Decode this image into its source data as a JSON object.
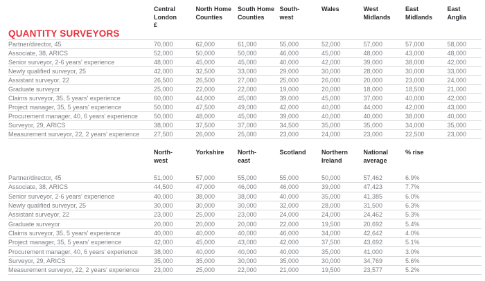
{
  "title": "QUANTITY SURVEYORS",
  "colors": {
    "title_red": "#e8313d",
    "header_text": "#2b2b2f",
    "row_text": "#7d7e82",
    "divider": "#d6d7d8"
  },
  "chart_data": [
    {
      "type": "table",
      "title": "QUANTITY SURVEYORS",
      "columns": [
        "Central\nLondon\n£",
        "North Home\nCounties",
        "South Home\nCounties",
        "South-\nwest",
        "Wales",
        "West\nMidlands",
        "East\nMidlands",
        "East\nAnglia"
      ],
      "rows": [
        {
          "label": "Partner/director, 45",
          "values": [
            "70,000",
            "62,000",
            "61,000",
            "55,000",
            "52,000",
            "57,000",
            "57,000",
            "58,000"
          ]
        },
        {
          "label": "Associate, 38, ARICS",
          "values": [
            "52,000",
            "50,000",
            "50,000",
            "46,000",
            "45,000",
            "48,000",
            "43,000",
            "48,000"
          ]
        },
        {
          "label": "Senior surveyor, 2-6 years' experience",
          "values": [
            "48,000",
            "45,000",
            "45,000",
            "40,000",
            "42,000",
            "39,000",
            "38,000",
            "42,000"
          ]
        },
        {
          "label": "Newly qualified surveyor, 25",
          "values": [
            "42,000",
            "32,500",
            "33,000",
            "29,000",
            "30,000",
            "28,000",
            "30,000",
            "33,000"
          ]
        },
        {
          "label": "Assistant surveyor, 22",
          "values": [
            "26,500",
            "26,500",
            "27,000",
            "25,000",
            "26,000",
            "20,000",
            "23,000",
            "24,000"
          ]
        },
        {
          "label": "Graduate surveyor",
          "values": [
            "25,000",
            "22,000",
            "22,000",
            "19,000",
            "20,000",
            "18,000",
            "18,500",
            "21,000"
          ]
        },
        {
          "label": "Claims surveyor, 35, 5 years' experience",
          "values": [
            "60,000",
            "44,000",
            "45,000",
            "39,000",
            "45,000",
            "37,000",
            "40,000",
            "42,000"
          ]
        },
        {
          "label": "Project manager, 35, 5 years' experience",
          "values": [
            "50,000",
            "47,500",
            "49,000",
            "42,000",
            "40,000",
            "44,000",
            "42,000",
            "43,000"
          ]
        },
        {
          "label": "Procurement manager, 40, 6 years' experience",
          "values": [
            "50,000",
            "48,000",
            "45,000",
            "39,000",
            "40,000",
            "40,000",
            "38,000",
            "40,000"
          ]
        },
        {
          "label": "Surveyor, 29, ARICS",
          "values": [
            "38,000",
            "37,500",
            "37,000",
            "34,500",
            "35,000",
            "35,000",
            "34,000",
            "35,000"
          ]
        },
        {
          "label": "Measurement surveyor, 22, 2 years' experience",
          "values": [
            "27,500",
            "26,000",
            "25,000",
            "23,000",
            "24,000",
            "23,000",
            "22,500",
            "23,000"
          ]
        }
      ]
    },
    {
      "type": "table",
      "title": "QUANTITY SURVEYORS (continued)",
      "columns": [
        "North-\nwest",
        "Yorkshire",
        "North-\neast",
        "Scotland",
        "Northern\nIreland",
        "National\naverage",
        "% rise"
      ],
      "rows": [
        {
          "label": "Partner/director, 45",
          "values": [
            "51,000",
            "57,000",
            "55,000",
            "55,000",
            "50,000",
            "57,462",
            "6.9%"
          ]
        },
        {
          "label": "Associate, 38, ARICS",
          "values": [
            "44,500",
            "47,000",
            "46,000",
            "46,000",
            "39,000",
            "47,423",
            "7.7%"
          ]
        },
        {
          "label": "Senior surveyor, 2-6 years' experience",
          "values": [
            "40,000",
            "38,000",
            "38,000",
            "40,000",
            "35,000",
            "41,385",
            "6.0%"
          ]
        },
        {
          "label": "Newly qualified surveyor, 25",
          "values": [
            "30,000",
            "30,000",
            "30,000",
            "32,000",
            "28,000",
            "31,500",
            "6.3%"
          ]
        },
        {
          "label": "Assistant surveyor, 22",
          "values": [
            "23,000",
            "25,000",
            "23,000",
            "24,000",
            "24,000",
            "24,462",
            "5.3%"
          ]
        },
        {
          "label": "Graduate surveyor",
          "values": [
            "20,000",
            "20,000",
            "20,000",
            "22,000",
            "19,500",
            "20,692",
            "5.4%"
          ]
        },
        {
          "label": "Claims surveyor, 35, 5 years' experience",
          "values": [
            "40,000",
            "40,000",
            "40,000",
            "46,000",
            "34,000",
            "42,642",
            "4.0%"
          ]
        },
        {
          "label": "Project manager, 35, 5 years' experience",
          "values": [
            "42,000",
            "45,000",
            "43,000",
            "42,000",
            "37,500",
            "43,692",
            "5.1%"
          ]
        },
        {
          "label": "Procurement manager, 40, 6 years' experience",
          "values": [
            "38,000",
            "40,000",
            "40,000",
            "40,000",
            "35,000",
            "41,000",
            "3.0%"
          ]
        },
        {
          "label": "Surveyor, 29, ARICS",
          "values": [
            "35,000",
            "35,000",
            "30,000",
            "35,000",
            "30,000",
            "34,769",
            "5.6%"
          ]
        },
        {
          "label": "Measurement surveyor, 22, 2 years' experience",
          "values": [
            "23,000",
            "25,000",
            "22,000",
            "21,000",
            "19,500",
            "23,577",
            "5.2%"
          ]
        }
      ]
    }
  ]
}
